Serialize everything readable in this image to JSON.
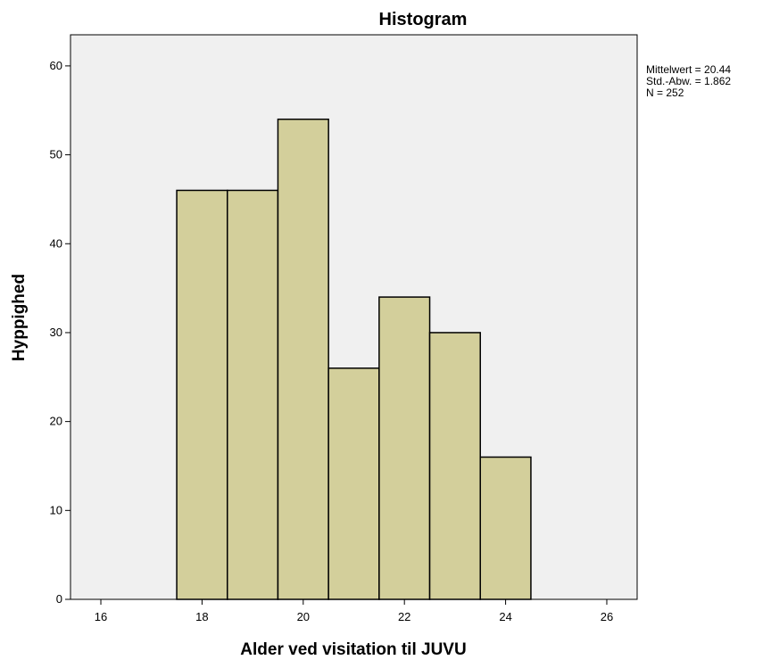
{
  "chart_data": {
    "type": "bar",
    "title": "Histogram",
    "xlabel": "Alder ved visitation til JUVU",
    "ylabel": "Hyppighed",
    "bins": [
      {
        "center": 18,
        "value": 46
      },
      {
        "center": 19,
        "value": 46
      },
      {
        "center": 20,
        "value": 54
      },
      {
        "center": 21,
        "value": 26
      },
      {
        "center": 22,
        "value": 34
      },
      {
        "center": 23,
        "value": 30
      },
      {
        "center": 24,
        "value": 16
      }
    ],
    "bin_width": 1,
    "xlim": [
      15.4,
      26.6
    ],
    "ylim": [
      0,
      63.5
    ],
    "xticks": [
      16,
      18,
      20,
      22,
      24,
      26
    ],
    "yticks": [
      0,
      10,
      20,
      30,
      40,
      50,
      60
    ],
    "grid": false,
    "legend": "none",
    "stats": {
      "mean": "Mittelwert = 20.44",
      "sd": "Std.-Abw. = 1.862",
      "n": "N = 252"
    },
    "colors": {
      "bar_fill": "#d3cf9b",
      "bar_stroke": "#000000",
      "plot_background": "#f0f0f0",
      "axis": "#000000"
    }
  }
}
